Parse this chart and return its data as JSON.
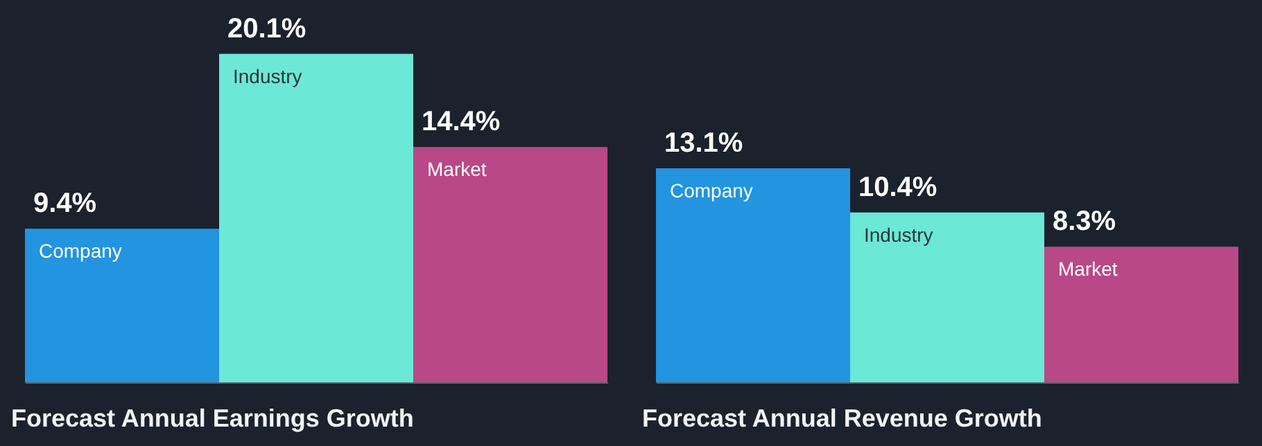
{
  "chart_data": [
    {
      "type": "bar",
      "title": "Forecast Annual Earnings Growth",
      "categories": [
        "Company",
        "Industry",
        "Market"
      ],
      "values": [
        9.4,
        20.1,
        14.4
      ],
      "colors": [
        "#2394df",
        "#6ce8d6",
        "#b84887"
      ],
      "value_labels": [
        "9.4%",
        "20.1%",
        "14.4%"
      ]
    },
    {
      "type": "bar",
      "title": "Forecast Annual Revenue Growth",
      "categories": [
        "Company",
        "Industry",
        "Market"
      ],
      "values": [
        13.1,
        10.4,
        8.3
      ],
      "colors": [
        "#2394df",
        "#6ce8d6",
        "#b84887"
      ],
      "value_labels": [
        "13.1%",
        "10.4%",
        "8.3%"
      ]
    }
  ]
}
